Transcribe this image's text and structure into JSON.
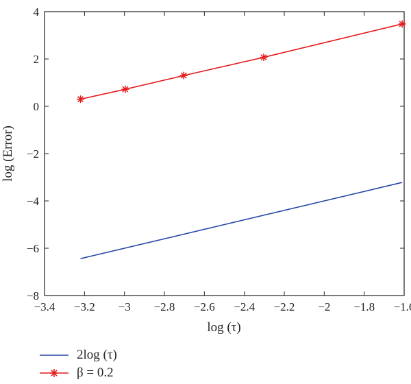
{
  "chart_data": {
    "type": "line",
    "xlabel": "log (τ)",
    "ylabel": "log (Error)",
    "xlim": [
      -3.4,
      -1.6
    ],
    "ylim": [
      -8,
      4
    ],
    "xticks": [
      "−3.4",
      "−3.2",
      "−3",
      "−2.8",
      "−2.6",
      "−2.4",
      "−2.2",
      "−2",
      "−1.8",
      "−1.6"
    ],
    "yticks": [
      "−8",
      "−6",
      "−4",
      "−2",
      "0",
      "2",
      "4"
    ],
    "grid": false,
    "legend_position": "bottom-left",
    "series": [
      {
        "name": "2log (τ)",
        "color": "#2547a6",
        "marker": "none",
        "x": [
          -3.22,
          -1.61
        ],
        "y": [
          -6.44,
          -3.22
        ]
      },
      {
        "name": "β = 0.2",
        "color": "#e31a1c",
        "marker": "asterisk",
        "x": [
          -3.22,
          -2.996,
          -2.703,
          -2.303,
          -1.61
        ],
        "y": [
          0.3,
          0.72,
          1.3,
          2.07,
          3.48
        ]
      }
    ]
  },
  "legend": {
    "items": [
      {
        "label": "2log (τ)"
      },
      {
        "label": "β = 0.2"
      }
    ]
  }
}
